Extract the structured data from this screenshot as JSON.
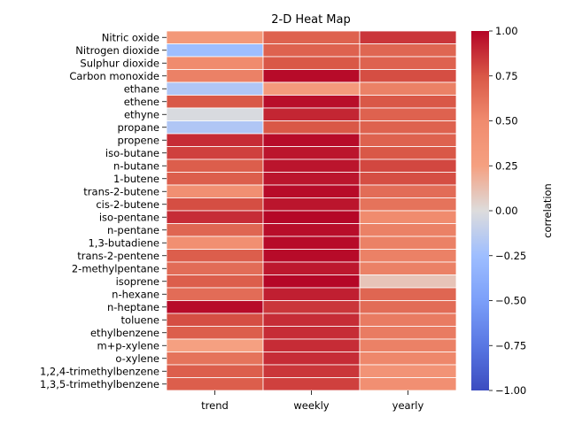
{
  "chart_data": {
    "type": "heatmap",
    "title": "2-D Heat Map",
    "columns": [
      "trend",
      "weekly",
      "yearly"
    ],
    "rows": [
      "Nitric oxide",
      "Nitrogen dioxide",
      "Sulphur dioxide",
      "Carbon monoxide",
      "ethane",
      "ethene",
      "ethyne",
      "propane",
      "propene",
      "iso-butane",
      "n-butane",
      "1-butene",
      "trans-2-butene",
      "cis-2-butene",
      "iso-pentane",
      "n-pentane",
      "1,3-butadiene",
      "trans-2-pentene",
      "2-methylpentane",
      "isoprene",
      "n-hexane",
      "n-heptane",
      "toluene",
      "ethylbenzene",
      "m+p-xylene",
      "o-xylene",
      "1,2,4-trimethylbenzene",
      "1,3,5-trimethylbenzene"
    ],
    "values": [
      [
        0.35,
        0.7,
        0.85
      ],
      [
        -0.25,
        0.7,
        0.68
      ],
      [
        0.5,
        0.75,
        0.7
      ],
      [
        0.55,
        0.98,
        0.78
      ],
      [
        -0.18,
        0.32,
        0.55
      ],
      [
        0.75,
        0.97,
        0.75
      ],
      [
        -0.02,
        0.9,
        0.7
      ],
      [
        -0.18,
        0.75,
        0.7
      ],
      [
        0.88,
        0.98,
        0.7
      ],
      [
        0.82,
        0.95,
        0.75
      ],
      [
        0.72,
        0.95,
        0.8
      ],
      [
        0.72,
        0.95,
        0.78
      ],
      [
        0.45,
        0.98,
        0.65
      ],
      [
        0.78,
        0.95,
        0.62
      ],
      [
        0.88,
        0.99,
        0.5
      ],
      [
        0.68,
        0.97,
        0.55
      ],
      [
        0.45,
        0.98,
        0.55
      ],
      [
        0.72,
        0.98,
        0.55
      ],
      [
        0.65,
        0.94,
        0.55
      ],
      [
        0.72,
        0.99,
        0.1
      ],
      [
        0.65,
        0.92,
        0.68
      ],
      [
        0.98,
        0.85,
        0.65
      ],
      [
        0.78,
        0.88,
        0.58
      ],
      [
        0.72,
        0.88,
        0.58
      ],
      [
        0.25,
        0.88,
        0.55
      ],
      [
        0.62,
        0.88,
        0.52
      ],
      [
        0.72,
        0.85,
        0.4
      ],
      [
        0.72,
        0.82,
        0.45
      ]
    ],
    "colorbar": {
      "label": "correlation",
      "range": [
        -1.0,
        1.0
      ],
      "ticks": [
        "1.00",
        "0.75",
        "0.50",
        "0.25",
        "0.00",
        "−0.25",
        "−0.50",
        "−0.75",
        "−1.00"
      ],
      "colormap": "coolwarm"
    }
  }
}
